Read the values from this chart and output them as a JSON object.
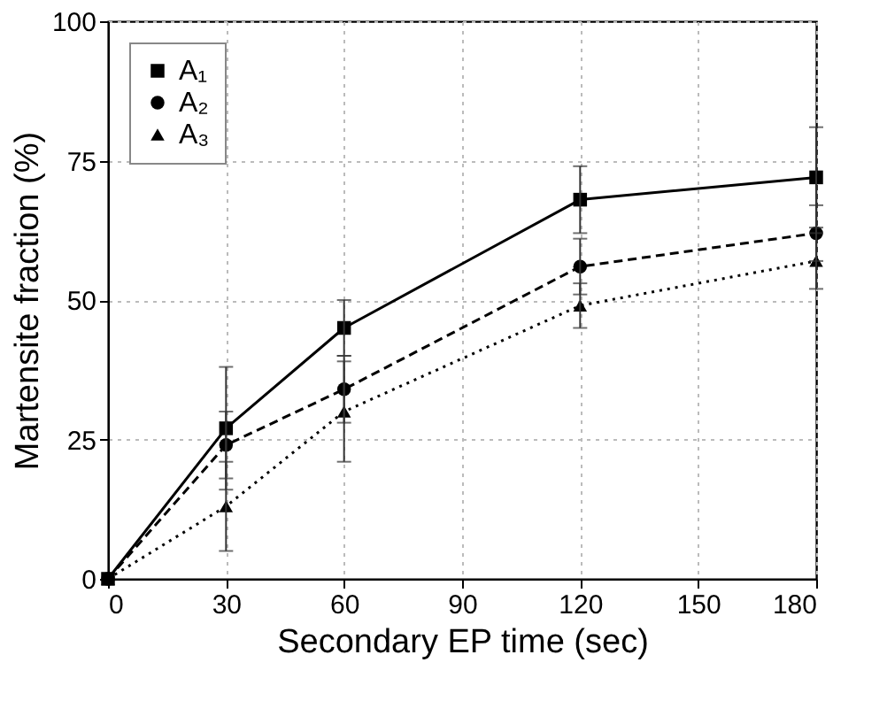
{
  "chart_data": {
    "type": "line",
    "x": [
      0,
      30,
      60,
      120,
      180
    ],
    "xlabel": "Secondary EP time (sec)",
    "ylabel": "Martensite fraction (%)",
    "xlim": [
      0,
      180
    ],
    "xticks": [
      0,
      30,
      60,
      90,
      120,
      150,
      180
    ],
    "ylim": [
      0,
      100
    ],
    "yticks": [
      0,
      25,
      50,
      75,
      100
    ],
    "grid": true,
    "legend": "top left",
    "series": [
      {
        "name": "A₁",
        "color": "#000000",
        "marker": "square",
        "line_style": "solid",
        "values": [
          0,
          27,
          45,
          68,
          72
        ],
        "errors": [
          null,
          11,
          5,
          6,
          9
        ]
      },
      {
        "name": "A₂",
        "color": "#000000",
        "marker": "circle",
        "line_style": "dashed",
        "values": [
          0,
          24,
          34,
          56,
          62
        ],
        "errors": [
          null,
          6,
          6,
          5,
          5
        ]
      },
      {
        "name": "A₃",
        "color": "#000000",
        "marker": "triangle",
        "line_style": "dotted",
        "values": [
          0,
          13,
          30,
          49,
          57
        ],
        "errors": [
          null,
          8,
          9,
          4,
          5
        ]
      }
    ]
  }
}
